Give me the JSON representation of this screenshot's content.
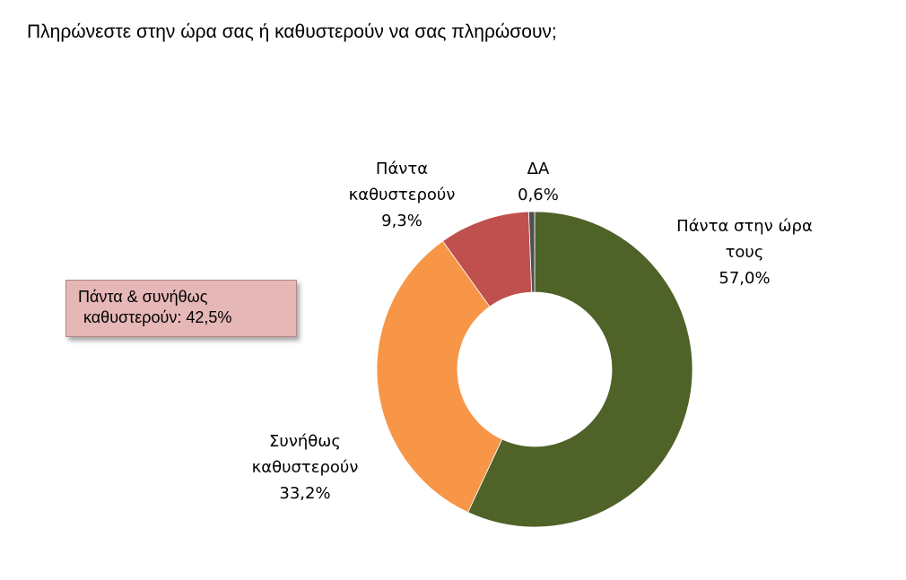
{
  "title": "Πληρώνεστε στην ώρα σας ή καθυστερούν να σας πληρώσουν;",
  "callout": {
    "line1": "Πάντα & συνήθως",
    "line2": "καθυστερούν: 42,5%"
  },
  "chart_data": {
    "type": "pie",
    "donut": true,
    "title": "Πληρώνεστε στην ώρα σας ή καθυστερούν να σας πληρώσουν;",
    "slices": [
      {
        "label_lines": [
          "Πάντα στην ώρα",
          "τους"
        ],
        "value": 57.0,
        "value_label": "57,0%",
        "color": "#4f6228"
      },
      {
        "label_lines": [
          "Συνήθως",
          "καθυστερούν"
        ],
        "value": 33.2,
        "value_label": "33,2%",
        "color": "#f79646"
      },
      {
        "label_lines": [
          "Πάντα",
          "καθυστερούν"
        ],
        "value": 9.3,
        "value_label": "9,3%",
        "color": "#c0504d"
      },
      {
        "label_lines": [
          "ΔΑ"
        ],
        "value": 0.6,
        "value_label": "0,6%",
        "color": "#4f4f4f"
      }
    ],
    "legend": "none"
  }
}
